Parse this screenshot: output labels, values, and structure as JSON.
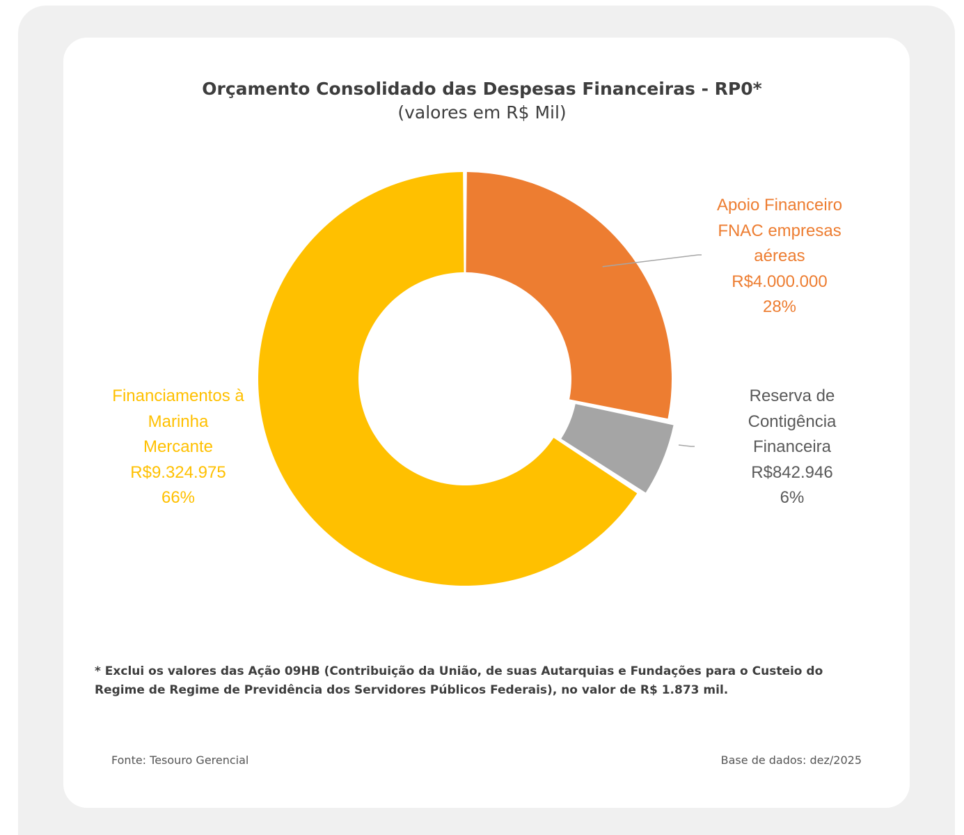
{
  "chart_data": {
    "type": "pie",
    "title": "Orçamento Consolidado das Despesas Financeiras - RP0*",
    "subtitle": "(valores em R$ Mil)",
    "segments": [
      {
        "label_lines": [
          "Apoio Financeiro",
          "FNAC empresas",
          "aéreas"
        ],
        "value": 4000000,
        "value_label": "R$4.000.000",
        "percent": 28,
        "percent_label": "28%",
        "color": "#ED7D31"
      },
      {
        "label_lines": [
          "Reserva de",
          "Contigência",
          "Financeira"
        ],
        "value": 842946,
        "value_label": "R$842.946",
        "percent": 6,
        "percent_label": "6%",
        "color": "#A5A5A5",
        "text_color": "#595959"
      },
      {
        "label_lines": [
          "Financiamentos à",
          "Marinha",
          "Mercante"
        ],
        "value": 9324975,
        "value_label": "R$9.324.975",
        "percent": 66,
        "percent_label": "66%",
        "color": "#FFC000"
      }
    ]
  },
  "footnote": "* Exclui os valores das Ação 09HB (Contribuição da União, de suas Autarquias e Fundações para o Custeio do Regime de Regime de Previdência dos Servidores Públicos Federais), no valor de R$ 1.873 mil.",
  "source": "Fonte: Tesouro Gerencial",
  "base": "Base de dados: dez/2025"
}
